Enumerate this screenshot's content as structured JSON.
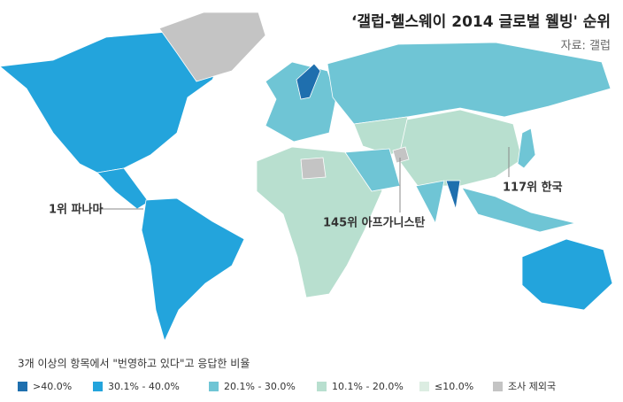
{
  "title": "‘갤럽-헬스웨이 2014 글로벌 웰빙' 순위",
  "source": "자료: 갤럽",
  "annotations": [
    {
      "text": "1위 파나마"
    },
    {
      "text": "145위 아프가니스탄"
    },
    {
      "text": "117위 한국"
    }
  ],
  "legend": {
    "title": "3개 이상의 항목에서 \"번영하고 있다\"고 응답한 비율",
    "items": [
      {
        "label": ">40.0%",
        "color": "#1f6fae"
      },
      {
        "label": "30.1% - 40.0%",
        "color": "#23a4dc"
      },
      {
        "label": "20.1% - 30.0%",
        "color": "#6fc5d5"
      },
      {
        "label": "10.1% - 20.0%",
        "color": "#b8dfcf"
      },
      {
        "label": "≤10.0%",
        "color": "#dcede2"
      },
      {
        "label": "조사 제외국",
        "color": "#c4c4c4"
      }
    ]
  }
}
